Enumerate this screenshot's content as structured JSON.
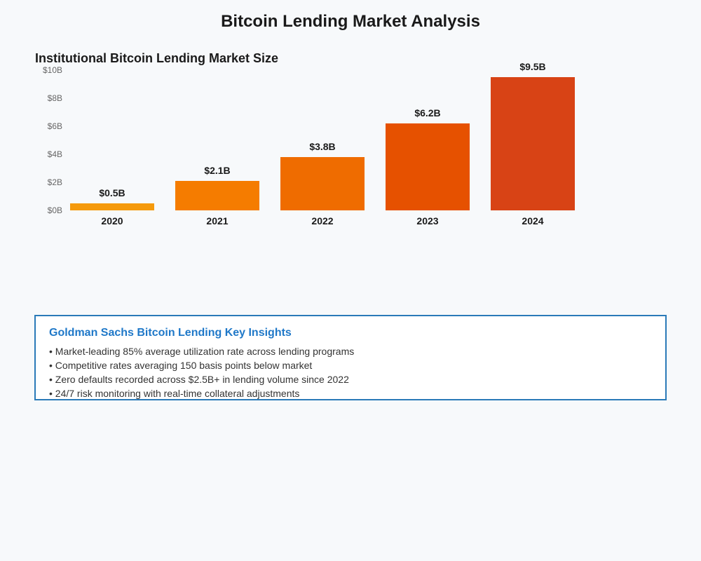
{
  "page": {
    "title": "Bitcoin Lending Market Analysis"
  },
  "chart_data": {
    "type": "bar",
    "title": "Institutional Bitcoin Lending Market Size",
    "xlabel": "",
    "ylabel": "",
    "categories": [
      "2020",
      "2021",
      "2022",
      "2023",
      "2024"
    ],
    "values": [
      0.5,
      2.1,
      3.8,
      6.2,
      9.5
    ],
    "value_labels": [
      "$0.5B",
      "$2.1B",
      "$3.8B",
      "$6.2B",
      "$9.5B"
    ],
    "y_ticks": [
      0,
      2,
      4,
      6,
      8,
      10
    ],
    "y_tick_labels": [
      "$0B",
      "$2B",
      "$4B",
      "$6B",
      "$8B",
      "$10B"
    ],
    "ylim": [
      0,
      10
    ],
    "grid": false,
    "legend": "none",
    "colors": [
      "#f59a0c",
      "#f57c00",
      "#ef6c00",
      "#e65100",
      "#d84315"
    ]
  },
  "insights": {
    "title": "Goldman Sachs Bitcoin Lending Key Insights",
    "items": [
      "Market-leading 85% average utilization rate across lending programs",
      "Competitive rates averaging 150 basis points below market",
      "Zero defaults recorded across $2.5B+ in lending volume since 2022",
      "24/7 risk monitoring with real-time collateral adjustments"
    ],
    "border_color": "#2a7ab8",
    "title_color": "#1f78c8"
  }
}
